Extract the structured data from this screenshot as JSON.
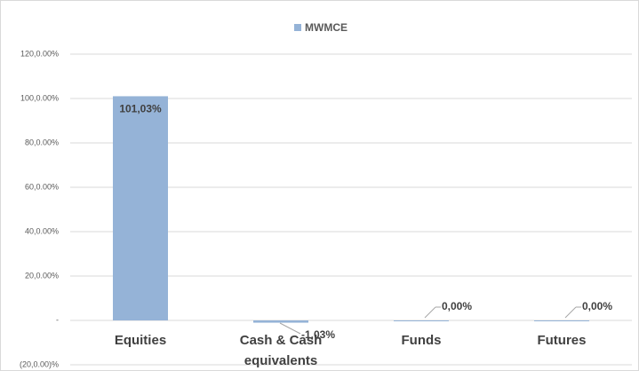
{
  "chart_data": {
    "type": "bar",
    "categories": [
      "Equities",
      "Cash & Cash equivalents",
      "Funds",
      "Futures"
    ],
    "series": [
      {
        "name": "MWMCE",
        "color": "#95b3d7",
        "values": [
          101.03,
          -1.03,
          0,
          0
        ],
        "value_labels": [
          "101,03%",
          "-1,03%",
          "0,00%",
          "0,00%"
        ]
      }
    ],
    "ylim": [
      -20,
      120
    ],
    "yticks": [
      {
        "value": -20,
        "label": "(20,0.00)%"
      },
      {
        "value": 0,
        "label": "-"
      },
      {
        "value": 20,
        "label": "20,0.00%"
      },
      {
        "value": 40,
        "label": "40,0.00%"
      },
      {
        "value": 60,
        "label": "60,0.00%"
      },
      {
        "value": 80,
        "label": "80,0.00%"
      },
      {
        "value": 100,
        "label": "100,0.00%"
      },
      {
        "value": 120,
        "label": "120,0.00%"
      }
    ],
    "grid": true,
    "legend": "top"
  }
}
